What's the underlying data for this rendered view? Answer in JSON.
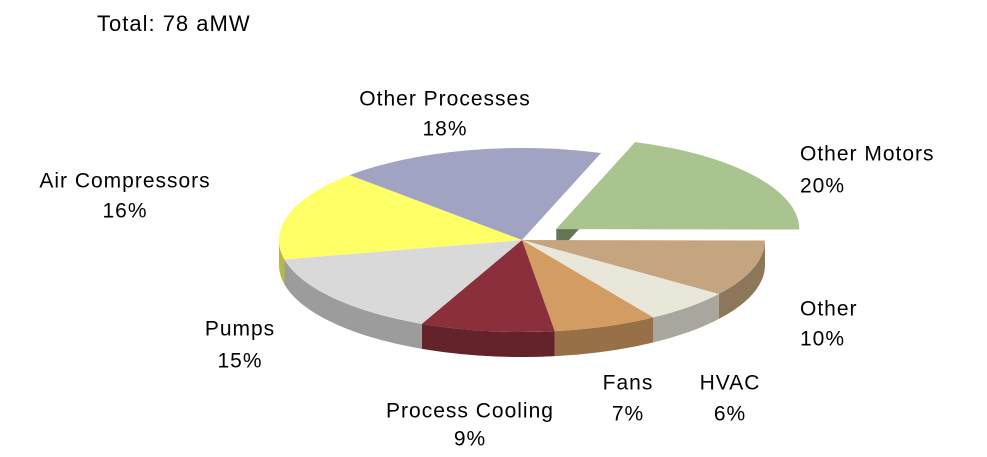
{
  "chart_data": {
    "type": "pie3d",
    "subtitle": "Total: 78 aMW",
    "categories": [
      "Other Motors",
      "Other",
      "HVAC",
      "Fans",
      "Process Cooling",
      "Pumps",
      "Air Compressors",
      "Other Processes"
    ],
    "values": [
      20,
      10,
      6,
      7,
      9,
      15,
      16,
      18
    ],
    "value_labels": [
      "20%",
      "10%",
      "6%",
      "7%",
      "9%",
      "15%",
      "16%",
      "18%"
    ],
    "colors": [
      "#a9c48f",
      "#c4a57f",
      "#e9e6da",
      "#d39c62",
      "#8b2f3c",
      "#d9d9d9",
      "#ffff66",
      "#a0a4c2"
    ]
  }
}
